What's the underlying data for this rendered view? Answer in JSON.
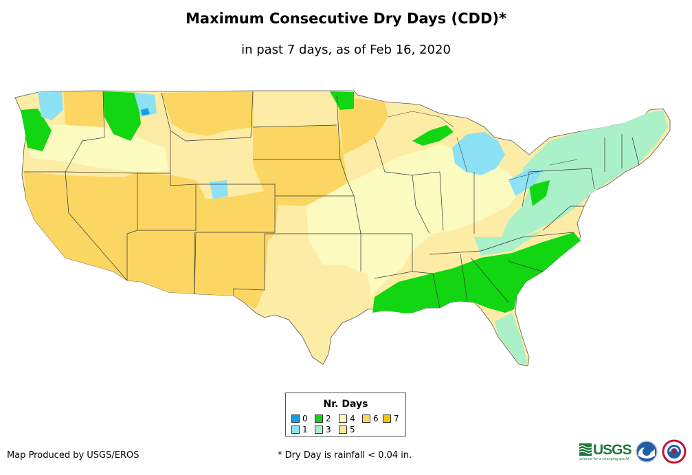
{
  "title": "Maximum Consecutive Dry Days (CDD)*",
  "subtitle": "in past 7 days, as of Feb 16, 2020",
  "legend": {
    "title": "Nr. Days",
    "items": [
      {
        "label": "0",
        "color": "#1a9be6"
      },
      {
        "label": "1",
        "color": "#8de1f5"
      },
      {
        "label": "2",
        "color": "#11d611"
      },
      {
        "label": "3",
        "color": "#aaf0c8"
      },
      {
        "label": "4",
        "color": "#fbfbc0"
      },
      {
        "label": "5",
        "color": "#fcea98"
      },
      {
        "label": "6",
        "color": "#fbd663"
      },
      {
        "label": "7",
        "color": "#f8c400"
      }
    ]
  },
  "credit": "Map Produced by USGS/EROS",
  "footnote": "* Dry Day is rainfall < 0.04 in.",
  "logos": {
    "usgs_word": "USGS",
    "usgs_tagline": "science for a changing world"
  }
}
